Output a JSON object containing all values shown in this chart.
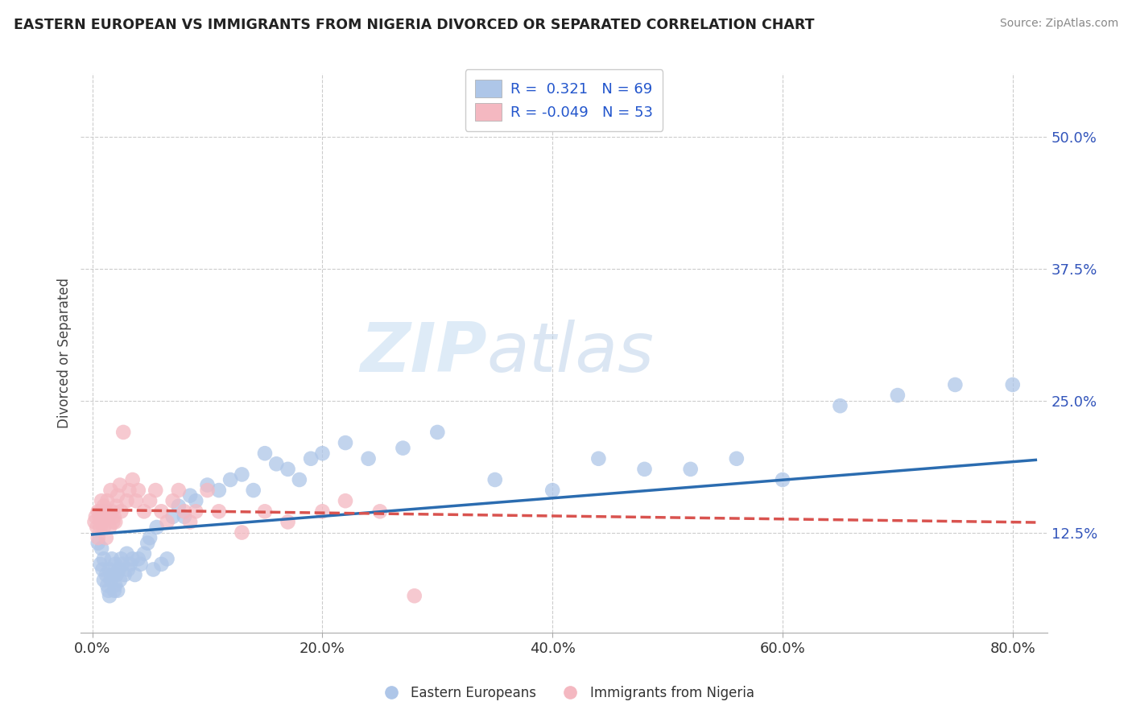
{
  "title": "EASTERN EUROPEAN VS IMMIGRANTS FROM NIGERIA DIVORCED OR SEPARATED CORRELATION CHART",
  "source": "Source: ZipAtlas.com",
  "ylabel": "Divorced or Separated",
  "ytick_labels": [
    "12.5%",
    "25.0%",
    "37.5%",
    "50.0%"
  ],
  "ytick_values": [
    0.125,
    0.25,
    0.375,
    0.5
  ],
  "xtick_labels": [
    "0.0%",
    "20.0%",
    "40.0%",
    "60.0%",
    "80.0%"
  ],
  "xtick_values": [
    0.0,
    0.2,
    0.4,
    0.6,
    0.8
  ],
  "xlim": [
    -0.01,
    0.83
  ],
  "ylim": [
    0.03,
    0.56
  ],
  "blue_R": 0.321,
  "blue_N": 69,
  "pink_R": -0.049,
  "pink_N": 53,
  "blue_color": "#aec6e8",
  "pink_color": "#f4b8c1",
  "blue_line_color": "#2b6cb0",
  "pink_line_color": "#d9534f",
  "legend_label_blue": "Eastern Europeans",
  "legend_label_pink": "Immigrants from Nigeria",
  "background_color": "#ffffff",
  "plot_bg_color": "#ffffff",
  "grid_color": "#cccccc",
  "watermark_zip": "ZIP",
  "watermark_atlas": "atlas",
  "blue_x": [
    0.005,
    0.007,
    0.008,
    0.009,
    0.01,
    0.01,
    0.012,
    0.013,
    0.014,
    0.015,
    0.015,
    0.016,
    0.017,
    0.018,
    0.019,
    0.02,
    0.02,
    0.021,
    0.022,
    0.023,
    0.024,
    0.025,
    0.026,
    0.028,
    0.03,
    0.031,
    0.033,
    0.035,
    0.037,
    0.04,
    0.042,
    0.045,
    0.048,
    0.05,
    0.053,
    0.056,
    0.06,
    0.065,
    0.07,
    0.075,
    0.08,
    0.085,
    0.09,
    0.1,
    0.11,
    0.12,
    0.13,
    0.14,
    0.15,
    0.16,
    0.17,
    0.18,
    0.19,
    0.2,
    0.22,
    0.24,
    0.27,
    0.3,
    0.35,
    0.4,
    0.44,
    0.48,
    0.52,
    0.56,
    0.6,
    0.65,
    0.7,
    0.75,
    0.8
  ],
  "blue_y": [
    0.115,
    0.095,
    0.11,
    0.09,
    0.08,
    0.1,
    0.085,
    0.075,
    0.07,
    0.065,
    0.09,
    0.08,
    0.1,
    0.085,
    0.07,
    0.095,
    0.075,
    0.085,
    0.07,
    0.09,
    0.08,
    0.1,
    0.095,
    0.085,
    0.105,
    0.09,
    0.095,
    0.1,
    0.085,
    0.1,
    0.095,
    0.105,
    0.115,
    0.12,
    0.09,
    0.13,
    0.095,
    0.1,
    0.14,
    0.15,
    0.14,
    0.16,
    0.155,
    0.17,
    0.165,
    0.175,
    0.18,
    0.165,
    0.2,
    0.19,
    0.185,
    0.175,
    0.195,
    0.2,
    0.21,
    0.195,
    0.205,
    0.22,
    0.175,
    0.165,
    0.195,
    0.185,
    0.185,
    0.195,
    0.175,
    0.245,
    0.255,
    0.265,
    0.265
  ],
  "pink_x": [
    0.002,
    0.003,
    0.004,
    0.005,
    0.005,
    0.006,
    0.007,
    0.007,
    0.008,
    0.008,
    0.009,
    0.01,
    0.01,
    0.011,
    0.012,
    0.012,
    0.013,
    0.014,
    0.015,
    0.016,
    0.017,
    0.018,
    0.019,
    0.02,
    0.021,
    0.022,
    0.024,
    0.025,
    0.027,
    0.03,
    0.032,
    0.035,
    0.038,
    0.04,
    0.045,
    0.05,
    0.055,
    0.06,
    0.065,
    0.07,
    0.075,
    0.08,
    0.085,
    0.09,
    0.1,
    0.11,
    0.13,
    0.15,
    0.17,
    0.2,
    0.22,
    0.25,
    0.28
  ],
  "pink_y": [
    0.135,
    0.14,
    0.13,
    0.145,
    0.12,
    0.14,
    0.13,
    0.145,
    0.155,
    0.135,
    0.145,
    0.15,
    0.13,
    0.14,
    0.12,
    0.145,
    0.155,
    0.14,
    0.13,
    0.165,
    0.145,
    0.135,
    0.14,
    0.135,
    0.15,
    0.16,
    0.17,
    0.145,
    0.22,
    0.155,
    0.165,
    0.175,
    0.155,
    0.165,
    0.145,
    0.155,
    0.165,
    0.145,
    0.135,
    0.155,
    0.165,
    0.145,
    0.135,
    0.145,
    0.165,
    0.145,
    0.125,
    0.145,
    0.135,
    0.145,
    0.155,
    0.145,
    0.065
  ]
}
